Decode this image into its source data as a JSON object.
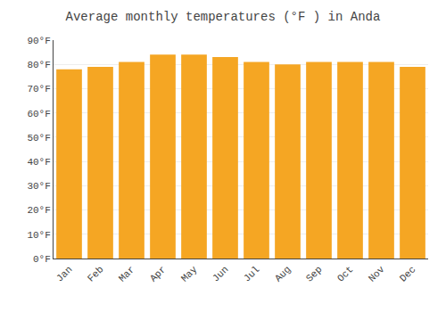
{
  "chart_data": {
    "type": "bar",
    "title": "Average monthly temperatures (°F ) in Anda",
    "categories": [
      "Jan",
      "Feb",
      "Mar",
      "Apr",
      "May",
      "Jun",
      "Jul",
      "Aug",
      "Sep",
      "Oct",
      "Nov",
      "Dec"
    ],
    "values": [
      78,
      79,
      81,
      84,
      84,
      83,
      81,
      80,
      81,
      81,
      81,
      79
    ],
    "color": "#F5A623",
    "ylim": [
      0,
      90
    ],
    "yticks": [
      {
        "value": 0,
        "label": "0°F"
      },
      {
        "value": 10,
        "label": "10°F"
      },
      {
        "value": 20,
        "label": "20°F"
      },
      {
        "value": 30,
        "label": "30°F"
      },
      {
        "value": 40,
        "label": "40°F"
      },
      {
        "value": 50,
        "label": "50°F"
      },
      {
        "value": 60,
        "label": "60°F"
      },
      {
        "value": 70,
        "label": "70°F"
      },
      {
        "value": 80,
        "label": "80°F"
      },
      {
        "value": 90,
        "label": "90°F"
      }
    ],
    "grid": true
  }
}
